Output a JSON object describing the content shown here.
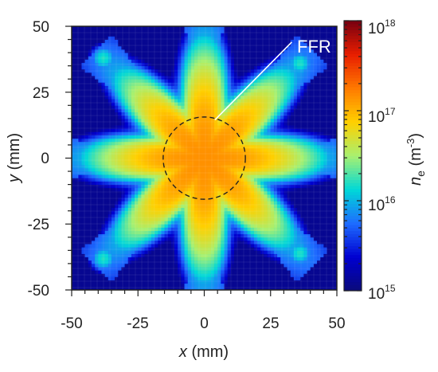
{
  "chart_data": {
    "type": "heatmap",
    "title": "",
    "xlabel": {
      "var": "x",
      "unit": " (mm)"
    },
    "ylabel": {
      "var": "y",
      "unit": " (mm)"
    },
    "xlim": [
      -50,
      50
    ],
    "ylim": [
      -50,
      50
    ],
    "xticks": [
      "-50",
      "-25",
      "0",
      "25",
      "50"
    ],
    "yticks": [
      "50",
      "25",
      "0",
      "-25",
      "-50"
    ],
    "grid": false,
    "colorbar": {
      "label_var": "n",
      "label_sub": "e",
      "label_unit_open": " (m",
      "label_unit_exp": "-3",
      "label_unit_close": ")",
      "scale": "log",
      "range": [
        1000000000000000.0,
        1e+18
      ],
      "ticks": [
        {
          "base": "10",
          "exp": "18"
        },
        {
          "base": "10",
          "exp": "17"
        },
        {
          "base": "10",
          "exp": "16"
        },
        {
          "base": "10",
          "exp": "15"
        }
      ],
      "colors": [
        "#0a0a7a",
        "#0000d0",
        "#1e6cff",
        "#00d8d8",
        "#a8f070",
        "#ffd000",
        "#ff7a00",
        "#e81e00",
        "#780010"
      ]
    },
    "field": {
      "description_values": {
        "background_log10": 15.1,
        "core_log10": 17.15,
        "star_arms": 8,
        "arm_tip_radius_mm": 50,
        "arm_tip_log10": 16.0,
        "outer_blob_log10": 16.2
      }
    },
    "annotations": [
      {
        "text": "FFR",
        "region": "dashed circle centered at (0,0), radius 15.5 mm"
      }
    ]
  }
}
